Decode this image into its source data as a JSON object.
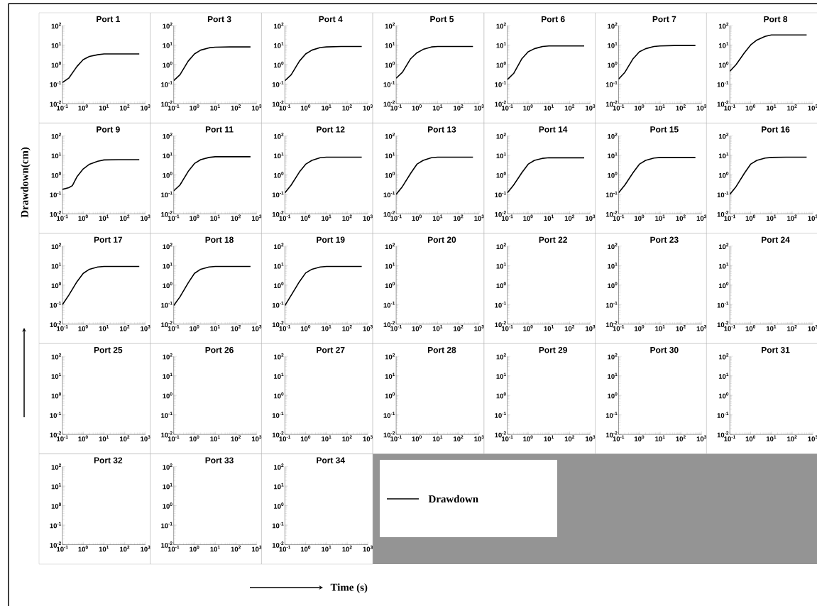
{
  "chart_data": [
    {
      "type": "line",
      "title": "Port 1",
      "legend": "bottom right",
      "log": "xy",
      "xlim": [
        0.1,
        1000
      ],
      "ylim": [
        0.01,
        100
      ],
      "xticks": [
        {
          "value": 0.1,
          "label": "10$^{-1}$"
        },
        {
          "value": 1,
          "label": "10$^{0}$"
        },
        {
          "value": 10,
          "label": "10$^{1}$"
        },
        {
          "value": 100,
          "label": "10$^{2}$"
        },
        {
          "value": 1000,
          "label": "10$^{3}$"
        }
      ],
      "yticks": [
        {
          "value": 0.01,
          "label": "10$^{-2}$"
        },
        {
          "value": 0.1,
          "label": "10$^{-1}$"
        },
        {
          "value": 1,
          "label": "10$^{0}$"
        },
        {
          "value": 10,
          "label": "10$^{1}$"
        },
        {
          "value": 100,
          "label": "10$^{2}$"
        }
      ],
      "series": [
        {
          "name": "Drawdown",
          "color": "#000000",
          "x": [
            0.1,
            0.2,
            0.5,
            1,
            2,
            5,
            10,
            50,
            500
          ],
          "values": [
            0.12,
            0.2,
            0.8,
            1.8,
            2.6,
            3.2,
            3.5,
            3.5,
            3.5
          ]
        }
      ]
    },
    {
      "type": "line",
      "title": "Port 3",
      "log": "xy",
      "xlim": [
        0.1,
        1000
      ],
      "ylim": [
        0.01,
        100
      ],
      "xticks": [
        {
          "value": 0.1,
          "label": "10$^{-1}$"
        },
        {
          "value": 1,
          "label": "10$^{0}$"
        },
        {
          "value": 10,
          "label": "10$^{1}$"
        },
        {
          "value": 100,
          "label": "10$^{2}$"
        },
        {
          "value": 1000,
          "label": "10$^{3}$"
        }
      ],
      "yticks": [
        {
          "value": 0.01,
          "label": "10$^{-2}$"
        },
        {
          "value": 0.1,
          "label": "10$^{-1}$"
        },
        {
          "value": 1,
          "label": "10$^{0}$"
        },
        {
          "value": 10,
          "label": "10$^{1}$"
        },
        {
          "value": 100,
          "label": "10$^{2}$"
        }
      ],
      "series": [
        {
          "color": "#000000",
          "x": [
            0.1,
            0.2,
            0.5,
            1,
            2,
            5,
            10,
            50,
            500
          ],
          "values": [
            0.15,
            0.3,
            1.5,
            3.5,
            5.5,
            7.2,
            7.8,
            8,
            8
          ]
        }
      ]
    },
    {
      "type": "line",
      "title": "Port 4",
      "log": "xy",
      "xlim": [
        0.1,
        1000
      ],
      "ylim": [
        0.01,
        100
      ],
      "xticks": [
        {
          "value": 0.1,
          "label": "10$^{-1}$"
        },
        {
          "value": 1,
          "label": "10$^{0}$"
        },
        {
          "value": 10,
          "label": "10$^{1}$"
        },
        {
          "value": 100,
          "label": "10$^{2}$"
        },
        {
          "value": 1000,
          "label": "10$^{3}$"
        }
      ],
      "yticks": [
        {
          "value": 0.01,
          "label": "10$^{-2}$"
        },
        {
          "value": 0.1,
          "label": "10$^{-1}$"
        },
        {
          "value": 1,
          "label": "10$^{0}$"
        },
        {
          "value": 10,
          "label": "10$^{1}$"
        },
        {
          "value": 100,
          "label": "10$^{2}$"
        }
      ],
      "series": [
        {
          "color": "#000000",
          "x": [
            0.1,
            0.2,
            0.5,
            1,
            2,
            5,
            10,
            50,
            500
          ],
          "values": [
            0.15,
            0.3,
            1.5,
            3.5,
            5.5,
            7.5,
            8,
            8.5,
            8.5
          ]
        }
      ]
    },
    {
      "type": "line",
      "title": "Port 5",
      "log": "xy",
      "xlim": [
        0.1,
        1000
      ],
      "ylim": [
        0.01,
        100
      ],
      "xticks": [
        {
          "value": 0.1,
          "label": "10$^{-1}$"
        },
        {
          "value": 1,
          "label": "10$^{0}$"
        },
        {
          "value": 10,
          "label": "10$^{1}$"
        },
        {
          "value": 100,
          "label": "10$^{2}$"
        },
        {
          "value": 1000,
          "label": "10$^{3}$"
        }
      ],
      "yticks": [
        {
          "value": 0.01,
          "label": "10$^{-2}$"
        },
        {
          "value": 0.1,
          "label": "10$^{-1}$"
        },
        {
          "value": 1,
          "label": "10$^{0}$"
        },
        {
          "value": 10,
          "label": "10$^{1}$"
        },
        {
          "value": 100,
          "label": "10$^{2}$"
        }
      ],
      "series": [
        {
          "color": "#000000",
          "x": [
            0.1,
            0.2,
            0.5,
            1,
            2,
            5,
            10,
            50,
            500
          ],
          "values": [
            0.2,
            0.4,
            2,
            4,
            6,
            8,
            8.5,
            8.5,
            8.5
          ]
        }
      ]
    },
    {
      "type": "line",
      "title": "Port 6",
      "log": "xy",
      "xlim": [
        0.1,
        1000
      ],
      "ylim": [
        0.01,
        100
      ],
      "xticks": [
        {
          "value": 0.1,
          "label": "10$^{-1}$"
        },
        {
          "value": 1,
          "label": "10$^{0}$"
        },
        {
          "value": 10,
          "label": "10$^{1}$"
        },
        {
          "value": 100,
          "label": "10$^{2}$"
        },
        {
          "value": 1000,
          "label": "10$^{3}$"
        }
      ],
      "yticks": [
        {
          "value": 0.01,
          "label": "10$^{-2}$"
        },
        {
          "value": 0.1,
          "label": "10$^{-1}$"
        },
        {
          "value": 1,
          "label": "10$^{0}$"
        },
        {
          "value": 10,
          "label": "10$^{1}$"
        },
        {
          "value": 100,
          "label": "10$^{2}$"
        }
      ],
      "series": [
        {
          "color": "#000000",
          "x": [
            0.1,
            0.2,
            0.5,
            1,
            2,
            5,
            10,
            50,
            500
          ],
          "values": [
            0.17,
            0.35,
            2,
            4.5,
            6.5,
            8.5,
            9,
            9,
            9
          ]
        }
      ]
    },
    {
      "type": "line",
      "title": "Port 7",
      "log": "xy",
      "xlim": [
        0.1,
        1000
      ],
      "ylim": [
        0.01,
        100
      ],
      "xticks": [
        {
          "value": 0.1,
          "label": "10$^{-1}$"
        },
        {
          "value": 1,
          "label": "10$^{0}$"
        },
        {
          "value": 10,
          "label": "10$^{1}$"
        },
        {
          "value": 100,
          "label": "10$^{2}$"
        },
        {
          "value": 1000,
          "label": "10$^{3}$"
        }
      ],
      "yticks": [
        {
          "value": 0.01,
          "label": "10$^{-2}$"
        },
        {
          "value": 0.1,
          "label": "10$^{-1}$"
        },
        {
          "value": 1,
          "label": "10$^{0}$"
        },
        {
          "value": 10,
          "label": "10$^{1}$"
        },
        {
          "value": 100,
          "label": "10$^{2}$"
        }
      ],
      "series": [
        {
          "color": "#000000",
          "x": [
            0.1,
            0.2,
            0.5,
            1,
            2,
            5,
            10,
            50,
            500
          ],
          "values": [
            0.18,
            0.4,
            2,
            4.5,
            6.5,
            8.5,
            9,
            9.5,
            9.5
          ]
        }
      ]
    },
    {
      "type": "line",
      "title": "Port 8",
      "log": "xy",
      "xlim": [
        0.1,
        1000
      ],
      "ylim": [
        0.01,
        100
      ],
      "xticks": [
        {
          "value": 0.1,
          "label": "10$^{-1}$"
        },
        {
          "value": 1,
          "label": "10$^{0}$"
        },
        {
          "value": 10,
          "label": "10$^{1}$"
        },
        {
          "value": 100,
          "label": "10$^{2}$"
        },
        {
          "value": 1000,
          "label": "10$^{3}$"
        }
      ],
      "yticks": [
        {
          "value": 0.01,
          "label": "10$^{-2}$"
        },
        {
          "value": 0.1,
          "label": "10$^{-1}$"
        },
        {
          "value": 1,
          "label": "10$^{0}$"
        },
        {
          "value": 10,
          "label": "10$^{1}$"
        },
        {
          "value": 100,
          "label": "10$^{2}$"
        }
      ],
      "series": [
        {
          "color": "#000000",
          "x": [
            0.1,
            0.2,
            0.5,
            1,
            2,
            5,
            10,
            50,
            500
          ],
          "values": [
            0.45,
            1,
            4,
            10,
            18,
            28,
            33,
            33,
            33
          ]
        }
      ]
    },
    {
      "type": "line",
      "title": "Port 9",
      "ylabel": "Drawdown(cm)",
      "log": "xy",
      "xlim": [
        0.1,
        1000
      ],
      "ylim": [
        0.01,
        100
      ],
      "xticks": [
        {
          "value": 0.1,
          "label": "10$^{-1}$"
        },
        {
          "value": 1,
          "label": "10$^{0}$"
        },
        {
          "value": 10,
          "label": "10$^{1}$"
        },
        {
          "value": 100,
          "label": "10$^{2}$"
        },
        {
          "value": 1000,
          "label": "10$^{3}$"
        }
      ],
      "yticks": [
        {
          "value": 0.01,
          "label": "10$^{-2}$"
        },
        {
          "value": 0.1,
          "label": "10$^{-1}$"
        },
        {
          "value": 1,
          "label": "10$^{0}$"
        },
        {
          "value": 10,
          "label": "10$^{1}$"
        },
        {
          "value": 100,
          "label": "10$^{2}$"
        }
      ],
      "series": [
        {
          "color": "#000000",
          "x": [
            0.1,
            0.2,
            0.3,
            0.5,
            1,
            2,
            5,
            10,
            50,
            500
          ],
          "values": [
            0.18,
            0.22,
            0.28,
            0.8,
            2,
            3.5,
            5,
            5.8,
            6,
            6
          ]
        }
      ]
    },
    {
      "type": "line",
      "title": "Port 11",
      "log": "xy",
      "xlim": [
        0.1,
        1000
      ],
      "ylim": [
        0.01,
        100
      ],
      "xticks": [
        {
          "value": 0.1,
          "label": "10$^{-1}$"
        },
        {
          "value": 1,
          "label": "10$^{0}$"
        },
        {
          "value": 10,
          "label": "10$^{1}$"
        },
        {
          "value": 100,
          "label": "10$^{2}$"
        },
        {
          "value": 1000,
          "label": "10$^{3}$"
        }
      ],
      "yticks": [
        {
          "value": 0.01,
          "label": "10$^{-2}$"
        },
        {
          "value": 0.1,
          "label": "10$^{-1}$"
        },
        {
          "value": 1,
          "label": "10$^{0}$"
        },
        {
          "value": 10,
          "label": "10$^{1}$"
        },
        {
          "value": 100,
          "label": "10$^{2}$"
        }
      ],
      "series": [
        {
          "color": "#000000",
          "x": [
            0.1,
            0.2,
            0.5,
            1,
            2,
            5,
            10,
            50,
            500
          ],
          "values": [
            0.15,
            0.3,
            1.5,
            3.8,
            6,
            7.8,
            8.5,
            8.5,
            8.5
          ]
        }
      ]
    },
    {
      "type": "line",
      "title": "Port 12",
      "log": "xy",
      "xlim": [
        0.1,
        1000
      ],
      "ylim": [
        0.01,
        100
      ],
      "xticks": [
        {
          "value": 0.1,
          "label": "10$^{-1}$"
        },
        {
          "value": 1,
          "label": "10$^{0}$"
        },
        {
          "value": 10,
          "label": "10$^{1}$"
        },
        {
          "value": 100,
          "label": "10$^{2}$"
        },
        {
          "value": 1000,
          "label": "10$^{3}$"
        }
      ],
      "yticks": [
        {
          "value": 0.01,
          "label": "10$^{-2}$"
        },
        {
          "value": 0.1,
          "label": "10$^{-1}$"
        },
        {
          "value": 1,
          "label": "10$^{0}$"
        },
        {
          "value": 10,
          "label": "10$^{1}$"
        },
        {
          "value": 100,
          "label": "10$^{2}$"
        }
      ],
      "series": [
        {
          "color": "#000000",
          "x": [
            0.1,
            0.2,
            0.5,
            1,
            2,
            5,
            10,
            50,
            500
          ],
          "values": [
            0.12,
            0.3,
            1.4,
            3.5,
            5.5,
            7.5,
            8,
            8,
            8
          ]
        }
      ]
    },
    {
      "type": "line",
      "title": "Port 13",
      "log": "xy",
      "xlim": [
        0.1,
        1000
      ],
      "ylim": [
        0.01,
        100
      ],
      "xticks": [
        {
          "value": 0.1,
          "label": "10$^{-1}$"
        },
        {
          "value": 1,
          "label": "10$^{0}$"
        },
        {
          "value": 10,
          "label": "10$^{1}$"
        },
        {
          "value": 100,
          "label": "10$^{2}$"
        },
        {
          "value": 1000,
          "label": "10$^{3}$"
        }
      ],
      "yticks": [
        {
          "value": 0.01,
          "label": "10$^{-2}$"
        },
        {
          "value": 0.1,
          "label": "10$^{-1}$"
        },
        {
          "value": 1,
          "label": "10$^{0}$"
        },
        {
          "value": 10,
          "label": "10$^{1}$"
        },
        {
          "value": 100,
          "label": "10$^{2}$"
        }
      ],
      "series": [
        {
          "color": "#000000",
          "x": [
            0.1,
            0.2,
            0.5,
            1,
            2,
            5,
            10,
            50,
            500
          ],
          "values": [
            0.1,
            0.25,
            1.2,
            3.5,
            5.5,
            7.5,
            8,
            8,
            8
          ]
        }
      ]
    },
    {
      "type": "line",
      "title": "Port 14",
      "log": "xy",
      "xlim": [
        0.1,
        1000
      ],
      "ylim": [
        0.01,
        100
      ],
      "xticks": [
        {
          "value": 0.1,
          "label": "10$^{-1}$"
        },
        {
          "value": 1,
          "label": "10$^{0}$"
        },
        {
          "value": 10,
          "label": "10$^{1}$"
        },
        {
          "value": 100,
          "label": "10$^{2}$"
        },
        {
          "value": 1000,
          "label": "10$^{3}$"
        }
      ],
      "yticks": [
        {
          "value": 0.01,
          "label": "10$^{-2}$"
        },
        {
          "value": 0.1,
          "label": "10$^{-1}$"
        },
        {
          "value": 1,
          "label": "10$^{0}$"
        },
        {
          "value": 10,
          "label": "10$^{1}$"
        },
        {
          "value": 100,
          "label": "10$^{2}$"
        }
      ],
      "series": [
        {
          "color": "#000000",
          "x": [
            0.1,
            0.2,
            0.5,
            1,
            2,
            5,
            10,
            50,
            500
          ],
          "values": [
            0.12,
            0.3,
            1.3,
            3.5,
            5.5,
            7,
            7.5,
            7.5,
            7.5
          ]
        }
      ]
    },
    {
      "type": "line",
      "title": "Port 15",
      "log": "xy",
      "xlim": [
        0.1,
        1000
      ],
      "ylim": [
        0.01,
        100
      ],
      "xticks": [
        {
          "value": 0.1,
          "label": "10$^{-1}$"
        },
        {
          "value": 1,
          "label": "10$^{0}$"
        },
        {
          "value": 10,
          "label": "10$^{1}$"
        },
        {
          "value": 100,
          "label": "10$^{2}$"
        },
        {
          "value": 1000,
          "label": "10$^{3}$"
        }
      ],
      "yticks": [
        {
          "value": 0.01,
          "label": "10$^{-2}$"
        },
        {
          "value": 0.1,
          "label": "10$^{-1}$"
        },
        {
          "value": 1,
          "label": "10$^{0}$"
        },
        {
          "value": 10,
          "label": "10$^{1}$"
        },
        {
          "value": 100,
          "label": "10$^{2}$"
        }
      ],
      "series": [
        {
          "color": "#000000",
          "x": [
            0.1,
            0.2,
            0.5,
            1,
            2,
            5,
            10,
            50,
            500
          ],
          "values": [
            0.12,
            0.3,
            1.3,
            3.5,
            5.5,
            7.2,
            7.8,
            7.8,
            7.8
          ]
        }
      ]
    },
    {
      "type": "line",
      "title": "Port 16",
      "log": "xy",
      "xlim": [
        0.1,
        1000
      ],
      "ylim": [
        0.01,
        100
      ],
      "xticks": [
        {
          "value": 0.1,
          "label": "10$^{-1}$"
        },
        {
          "value": 1,
          "label": "10$^{0}$"
        },
        {
          "value": 10,
          "label": "10$^{1}$"
        },
        {
          "value": 100,
          "label": "10$^{2}$"
        },
        {
          "value": 1000,
          "label": "10$^{3}$"
        }
      ],
      "yticks": [
        {
          "value": 0.01,
          "label": "10$^{-2}$"
        },
        {
          "value": 0.1,
          "label": "10$^{-1}$"
        },
        {
          "value": 1,
          "label": "10$^{0}$"
        },
        {
          "value": 10,
          "label": "10$^{1}$"
        },
        {
          "value": 100,
          "label": "10$^{2}$"
        }
      ],
      "series": [
        {
          "color": "#000000",
          "x": [
            0.1,
            0.2,
            0.5,
            1,
            2,
            5,
            10,
            50,
            500
          ],
          "values": [
            0.1,
            0.25,
            1.2,
            3.5,
            5.5,
            7.2,
            7.8,
            8,
            8
          ]
        }
      ]
    },
    {
      "type": "line",
      "title": "Port 17",
      "log": "xy",
      "xlim": [
        0.1,
        1000
      ],
      "ylim": [
        0.01,
        100
      ],
      "xticks": [
        {
          "value": 0.1,
          "label": "10$^{-1}$"
        },
        {
          "value": 1,
          "label": "10$^{0}$"
        },
        {
          "value": 10,
          "label": "10$^{1}$"
        },
        {
          "value": 100,
          "label": "10$^{2}$"
        },
        {
          "value": 1000,
          "label": "10$^{3}$"
        }
      ],
      "yticks": [
        {
          "value": 0.01,
          "label": "10$^{-2}$"
        },
        {
          "value": 0.1,
          "label": "10$^{-1}$"
        },
        {
          "value": 1,
          "label": "10$^{0}$"
        },
        {
          "value": 10,
          "label": "10$^{1}$"
        },
        {
          "value": 100,
          "label": "10$^{2}$"
        }
      ],
      "series": [
        {
          "color": "#000000",
          "x": [
            0.1,
            0.2,
            0.5,
            1,
            2,
            5,
            10,
            50,
            500
          ],
          "values": [
            0.1,
            0.3,
            1.5,
            4,
            6.5,
            8.5,
            9,
            9,
            9
          ]
        }
      ]
    },
    {
      "type": "line",
      "title": "Port 18",
      "log": "xy",
      "xlim": [
        0.1,
        1000
      ],
      "ylim": [
        0.01,
        100
      ],
      "xticks": [
        {
          "value": 0.1,
          "label": "10$^{-1}$"
        },
        {
          "value": 1,
          "label": "10$^{0}$"
        },
        {
          "value": 10,
          "label": "10$^{1}$"
        },
        {
          "value": 100,
          "label": "10$^{2}$"
        },
        {
          "value": 1000,
          "label": "10$^{3}$"
        }
      ],
      "yticks": [
        {
          "value": 0.01,
          "label": "10$^{-2}$"
        },
        {
          "value": 0.1,
          "label": "10$^{-1}$"
        },
        {
          "value": 1,
          "label": "10$^{0}$"
        },
        {
          "value": 10,
          "label": "10$^{1}$"
        },
        {
          "value": 100,
          "label": "10$^{2}$"
        }
      ],
      "series": [
        {
          "color": "#000000",
          "x": [
            0.1,
            0.2,
            0.5,
            1,
            2,
            5,
            10,
            50,
            500
          ],
          "values": [
            0.09,
            0.25,
            1.3,
            4,
            6.5,
            8.5,
            9,
            9,
            9
          ]
        }
      ]
    },
    {
      "type": "line",
      "title": "Port 19",
      "log": "xy",
      "xlim": [
        0.1,
        1000
      ],
      "ylim": [
        0.01,
        100
      ],
      "xticks": [
        {
          "value": 0.1,
          "label": "10$^{-1}$"
        },
        {
          "value": 1,
          "label": "10$^{0}$"
        },
        {
          "value": 10,
          "label": "10$^{1}$"
        },
        {
          "value": 100,
          "label": "10$^{2}$"
        },
        {
          "value": 1000,
          "label": "10$^{3}$"
        }
      ],
      "yticks": [
        {
          "value": 0.01,
          "label": "10$^{-2}$"
        },
        {
          "value": 0.1,
          "label": "10$^{-1}$"
        },
        {
          "value": 1,
          "label": "10$^{0}$"
        },
        {
          "value": 10,
          "label": "10$^{1}$"
        },
        {
          "value": 100,
          "label": "10$^{2}$"
        }
      ],
      "series": [
        {
          "color": "#000000",
          "x": [
            0.1,
            0.2,
            0.5,
            1,
            2,
            5,
            10,
            50,
            500
          ],
          "values": [
            0.09,
            0.3,
            1.5,
            4.2,
            6.5,
            8.5,
            9,
            9,
            9
          ]
        }
      ]
    },
    {
      "type": "line",
      "title": "Port 20",
      "log": "xy",
      "xlim": [
        0.1,
        1000
      ],
      "ylim": [
        0.01,
        100
      ],
      "xticks": [
        {
          "value": 0.1,
          "label": "10$^{-1}$"
        },
        {
          "value": 1,
          "label": "10$^{0}$"
        },
        {
          "value": 10,
          "label": "10$^{1}$"
        },
        {
          "value": 100,
          "label": "10$^{2}$"
        },
        {
          "value": 1000,
          "label": "10$^{3}$"
        }
      ],
      "yticks": [
        {
          "value": 0.01,
          "label": "10$^{-2}$"
        },
        {
          "value": 0.1,
          "label": "10$^{-1}$"
        },
        {
          "value": 1,
          "label": "10$^{0}$"
        },
        {
          "value": 10,
          "label": "10$^{1}$"
        },
        {
          "value": 100,
          "label": "10$^{2}$"
        }
      ]
    },
    {
      "type": "line",
      "title": "Port 22",
      "log": "xy",
      "xlim": [
        0.1,
        1000
      ],
      "ylim": [
        0.01,
        100
      ],
      "xticks": [
        {
          "value": 0.1,
          "label": "10$^{-1}$"
        },
        {
          "value": 1,
          "label": "10$^{0}$"
        },
        {
          "value": 10,
          "label": "10$^{1}$"
        },
        {
          "value": 100,
          "label": "10$^{2}$"
        },
        {
          "value": 1000,
          "label": "10$^{3}$"
        }
      ],
      "yticks": [
        {
          "value": 0.01,
          "label": "10$^{-2}$"
        },
        {
          "value": 0.1,
          "label": "10$^{-1}$"
        },
        {
          "value": 1,
          "label": "10$^{0}$"
        },
        {
          "value": 10,
          "label": "10$^{1}$"
        },
        {
          "value": 100,
          "label": "10$^{2}$"
        }
      ]
    },
    {
      "type": "line",
      "title": "Port 23",
      "log": "xy",
      "xlim": [
        0.1,
        1000
      ],
      "ylim": [
        0.01,
        100
      ],
      "xticks": [
        {
          "value": 0.1,
          "label": "10$^{-1}$"
        },
        {
          "value": 1,
          "label": "10$^{0}$"
        },
        {
          "value": 10,
          "label": "10$^{1}$"
        },
        {
          "value": 100,
          "label": "10$^{2}$"
        },
        {
          "value": 1000,
          "label": "10$^{3}$"
        }
      ],
      "yticks": [
        {
          "value": 0.01,
          "label": "10$^{-2}$"
        },
        {
          "value": 0.1,
          "label": "10$^{-1}$"
        },
        {
          "value": 1,
          "label": "10$^{0}$"
        },
        {
          "value": 10,
          "label": "10$^{1}$"
        },
        {
          "value": 100,
          "label": "10$^{2}$"
        }
      ]
    },
    {
      "type": "line",
      "title": "Port 24",
      "log": "xy",
      "xlim": [
        0.1,
        1000
      ],
      "ylim": [
        0.01,
        100
      ],
      "xticks": [
        {
          "value": 0.1,
          "label": "10$^{-1}$"
        },
        {
          "value": 1,
          "label": "10$^{0}$"
        },
        {
          "value": 10,
          "label": "10$^{1}$"
        },
        {
          "value": 100,
          "label": "10$^{2}$"
        },
        {
          "value": 1000,
          "label": "10$^{3}$"
        }
      ],
      "yticks": [
        {
          "value": 0.01,
          "label": "10$^{-2}$"
        },
        {
          "value": 0.1,
          "label": "10$^{-1}$"
        },
        {
          "value": 1,
          "label": "10$^{0}$"
        },
        {
          "value": 10,
          "label": "10$^{1}$"
        },
        {
          "value": 100,
          "label": "10$^{2}$"
        }
      ]
    },
    {
      "type": "line",
      "title": "Port 25",
      "log": "xy",
      "xlim": [
        0.1,
        1000
      ],
      "ylim": [
        0.01,
        100
      ],
      "xticks": [
        {
          "value": 0.1,
          "label": "10$^{-1}$"
        },
        {
          "value": 1,
          "label": "10$^{0}$"
        },
        {
          "value": 10,
          "label": "10$^{1}$"
        },
        {
          "value": 100,
          "label": "10$^{2}$"
        },
        {
          "value": 1000,
          "label": "10$^{3}$"
        }
      ],
      "yticks": [
        {
          "value": 0.01,
          "label": "10$^{-2}$"
        },
        {
          "value": 0.1,
          "label": "10$^{-1}$"
        },
        {
          "value": 1,
          "label": "10$^{0}$"
        },
        {
          "value": 10,
          "label": "10$^{1}$"
        },
        {
          "value": 100,
          "label": "10$^{2}$"
        }
      ]
    },
    {
      "type": "line",
      "title": "Port 26",
      "log": "xy",
      "xlim": [
        0.1,
        1000
      ],
      "ylim": [
        0.01,
        100
      ],
      "xticks": [
        {
          "value": 0.1,
          "label": "10$^{-1}$"
        },
        {
          "value": 1,
          "label": "10$^{0}$"
        },
        {
          "value": 10,
          "label": "10$^{1}$"
        },
        {
          "value": 100,
          "label": "10$^{2}$"
        },
        {
          "value": 1000,
          "label": "10$^{3}$"
        }
      ],
      "yticks": [
        {
          "value": 0.01,
          "label": "10$^{-2}$"
        },
        {
          "value": 0.1,
          "label": "10$^{-1}$"
        },
        {
          "value": 1,
          "label": "10$^{0}$"
        },
        {
          "value": 10,
          "label": "10$^{1}$"
        },
        {
          "value": 100,
          "label": "10$^{2}$"
        }
      ]
    },
    {
      "type": "line",
      "title": "Port 27",
      "log": "xy",
      "xlim": [
        0.1,
        1000
      ],
      "ylim": [
        0.01,
        100
      ],
      "xticks": [
        {
          "value": 0.1,
          "label": "10$^{-1}$"
        },
        {
          "value": 1,
          "label": "10$^{0}$"
        },
        {
          "value": 10,
          "label": "10$^{1}$"
        },
        {
          "value": 100,
          "label": "10$^{2}$"
        },
        {
          "value": 1000,
          "label": "10$^{3}$"
        }
      ],
      "yticks": [
        {
          "value": 0.01,
          "label": "10$^{-2}$"
        },
        {
          "value": 0.1,
          "label": "10$^{-1}$"
        },
        {
          "value": 1,
          "label": "10$^{0}$"
        },
        {
          "value": 10,
          "label": "10$^{1}$"
        },
        {
          "value": 100,
          "label": "10$^{2}$"
        }
      ]
    },
    {
      "type": "line",
      "title": "Port 28",
      "log": "xy",
      "xlim": [
        0.1,
        1000
      ],
      "ylim": [
        0.01,
        100
      ],
      "xticks": [
        {
          "value": 0.1,
          "label": "10$^{-1}$"
        },
        {
          "value": 1,
          "label": "10$^{0}$"
        },
        {
          "value": 10,
          "label": "10$^{1}$"
        },
        {
          "value": 100,
          "label": "10$^{2}$"
        },
        {
          "value": 1000,
          "label": "10$^{3}$"
        }
      ],
      "yticks": [
        {
          "value": 0.01,
          "label": "10$^{-2}$"
        },
        {
          "value": 0.1,
          "label": "10$^{-1}$"
        },
        {
          "value": 1,
          "label": "10$^{0}$"
        },
        {
          "value": 10,
          "label": "10$^{1}$"
        },
        {
          "value": 100,
          "label": "10$^{2}$"
        }
      ]
    },
    {
      "type": "line",
      "title": "Port 29",
      "log": "xy",
      "xlim": [
        0.1,
        1000
      ],
      "ylim": [
        0.01,
        100
      ],
      "xticks": [
        {
          "value": 0.1,
          "label": "10$^{-1}$"
        },
        {
          "value": 1,
          "label": "10$^{0}$"
        },
        {
          "value": 10,
          "label": "10$^{1}$"
        },
        {
          "value": 100,
          "label": "10$^{2}$"
        },
        {
          "value": 1000,
          "label": "10$^{3}$"
        }
      ],
      "yticks": [
        {
          "value": 0.01,
          "label": "10$^{-2}$"
        },
        {
          "value": 0.1,
          "label": "10$^{-1}$"
        },
        {
          "value": 1,
          "label": "10$^{0}$"
        },
        {
          "value": 10,
          "label": "10$^{1}$"
        },
        {
          "value": 100,
          "label": "10$^{2}$"
        }
      ]
    },
    {
      "type": "line",
      "title": "Port 30",
      "log": "xy",
      "xlim": [
        0.1,
        1000
      ],
      "ylim": [
        0.01,
        100
      ],
      "xticks": [
        {
          "value": 0.1,
          "label": "10$^{-1}$"
        },
        {
          "value": 1,
          "label": "10$^{0}$"
        },
        {
          "value": 10,
          "label": "10$^{1}$"
        },
        {
          "value": 100,
          "label": "10$^{2}$"
        },
        {
          "value": 1000,
          "label": "10$^{3}$"
        }
      ],
      "yticks": [
        {
          "value": 0.01,
          "label": "10$^{-2}$"
        },
        {
          "value": 0.1,
          "label": "10$^{-1}$"
        },
        {
          "value": 1,
          "label": "10$^{0}$"
        },
        {
          "value": 10,
          "label": "10$^{1}$"
        },
        {
          "value": 100,
          "label": "10$^{2}$"
        }
      ]
    },
    {
      "type": "line",
      "title": "Port 31",
      "log": "xy",
      "xlim": [
        0.1,
        1000
      ],
      "ylim": [
        0.01,
        100
      ],
      "xticks": [
        {
          "value": 0.1,
          "label": "10$^{-1}$"
        },
        {
          "value": 1,
          "label": "10$^{0}$"
        },
        {
          "value": 10,
          "label": "10$^{1}$"
        },
        {
          "value": 100,
          "label": "10$^{2}$"
        },
        {
          "value": 1000,
          "label": "10$^{3}$"
        }
      ],
      "yticks": [
        {
          "value": 0.01,
          "label": "10$^{-2}$"
        },
        {
          "value": 0.1,
          "label": "10$^{-1}$"
        },
        {
          "value": 1,
          "label": "10$^{0}$"
        },
        {
          "value": 10,
          "label": "10$^{1}$"
        },
        {
          "value": 100,
          "label": "10$^{2}$"
        }
      ]
    },
    {
      "type": "line",
      "title": "Port 32",
      "log": "xy",
      "xlim": [
        0.1,
        1000
      ],
      "ylim": [
        0.01,
        100
      ],
      "xticks": [
        {
          "value": 0.1,
          "label": "10$^{-1}$"
        },
        {
          "value": 1,
          "label": "10$^{0}$"
        },
        {
          "value": 10,
          "label": "10$^{1}$"
        },
        {
          "value": 100,
          "label": "10$^{2}$"
        },
        {
          "value": 1000,
          "label": "10$^{3}$"
        }
      ],
      "yticks": [
        {
          "value": 0.01,
          "label": "10$^{-2}$"
        },
        {
          "value": 0.1,
          "label": "10$^{-1}$"
        },
        {
          "value": 1,
          "label": "10$^{0}$"
        },
        {
          "value": 10,
          "label": "10$^{1}$"
        },
        {
          "value": 100,
          "label": "10$^{2}$"
        }
      ]
    },
    {
      "type": "line",
      "title": "Port 33",
      "log": "xy",
      "xlim": [
        0.1,
        1000
      ],
      "ylim": [
        0.01,
        100
      ],
      "xticks": [
        {
          "value": 0.1,
          "label": "10$^{-1}$"
        },
        {
          "value": 1,
          "label": "10$^{0}$"
        },
        {
          "value": 10,
          "label": "10$^{1}$"
        },
        {
          "value": 100,
          "label": "10$^{2}$"
        },
        {
          "value": 1000,
          "label": "10$^{3}$"
        }
      ],
      "yticks": [
        {
          "value": 0.01,
          "label": "10$^{-2}$"
        },
        {
          "value": 0.1,
          "label": "10$^{-1}$"
        },
        {
          "value": 1,
          "label": "10$^{0}$"
        },
        {
          "value": 10,
          "label": "10$^{1}$"
        },
        {
          "value": 100,
          "label": "10$^{2}$"
        }
      ]
    },
    {
      "type": "line",
      "title": "Port 34",
      "xlabel": "Time (s)",
      "log": "xy",
      "xlim": [
        0.1,
        1000
      ],
      "ylim": [
        0.01,
        100
      ],
      "xticks": [
        {
          "value": 0.1,
          "label": "10$^{-1}$"
        },
        {
          "value": 1,
          "label": "10$^{0}$"
        },
        {
          "value": 10,
          "label": "10$^{1}$"
        },
        {
          "value": 100,
          "label": "10$^{2}$"
        },
        {
          "value": 1000,
          "label": "10$^{3}$"
        }
      ],
      "yticks": [
        {
          "value": 0.01,
          "label": "10$^{-2}$"
        },
        {
          "value": 0.1,
          "label": "10$^{-1}$"
        },
        {
          "value": 1,
          "label": "10$^{0}$"
        },
        {
          "value": 10,
          "label": "10$^{1}$"
        },
        {
          "value": 100,
          "label": "10$^{2}$"
        }
      ]
    }
  ]
}
